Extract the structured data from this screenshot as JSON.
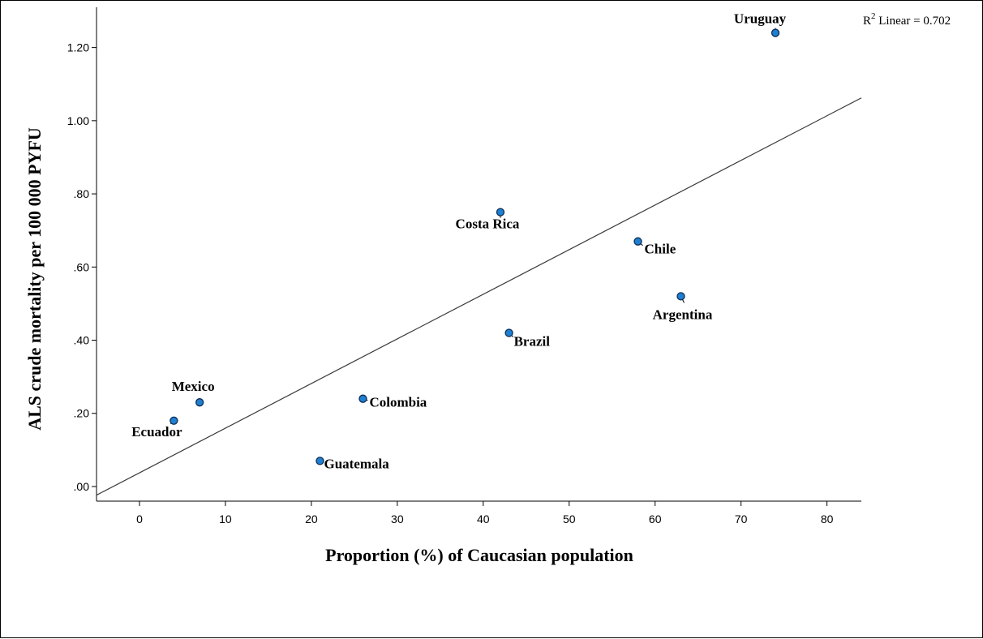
{
  "chart_data": {
    "type": "scatter",
    "xlabel": "Proportion (%) of Caucasian population",
    "ylabel": "ALS crude mortality per 100 000 PYFU",
    "xlim": [
      -5,
      84
    ],
    "ylim": [
      -0.04,
      1.31
    ],
    "x_ticks": [
      0,
      10,
      20,
      30,
      40,
      50,
      60,
      70,
      80
    ],
    "x_tick_labels": [
      "0",
      "10",
      "20",
      "30",
      "40",
      "50",
      "60",
      "70",
      "80"
    ],
    "y_ticks": [
      0,
      0.2,
      0.4,
      0.6,
      0.8,
      1.0,
      1.2
    ],
    "y_tick_labels": [
      ".00",
      ".20",
      ".40",
      ".60",
      ".80",
      "1.00",
      "1.20"
    ],
    "grid": false,
    "marker_color": "#1f7fd0",
    "fit_line": {
      "label": "R",
      "label_sup": "2",
      "label_rest": " Linear = 0.702",
      "intercept": 0.0375,
      "slope": 0.0122
    },
    "points": [
      {
        "label": "Uruguay",
        "x": 74,
        "y": 1.24
      },
      {
        "label": "Costa Rica",
        "x": 42,
        "y": 0.75
      },
      {
        "label": "Chile",
        "x": 58,
        "y": 0.67
      },
      {
        "label": "Argentina",
        "x": 63,
        "y": 0.52
      },
      {
        "label": "Brazil",
        "x": 43,
        "y": 0.42
      },
      {
        "label": "Colombia",
        "x": 26,
        "y": 0.24
      },
      {
        "label": "Mexico",
        "x": 7,
        "y": 0.23
      },
      {
        "label": "Ecuador",
        "x": 4,
        "y": 0.18
      },
      {
        "label": "Guatemala",
        "x": 21,
        "y": 0.07
      }
    ]
  }
}
